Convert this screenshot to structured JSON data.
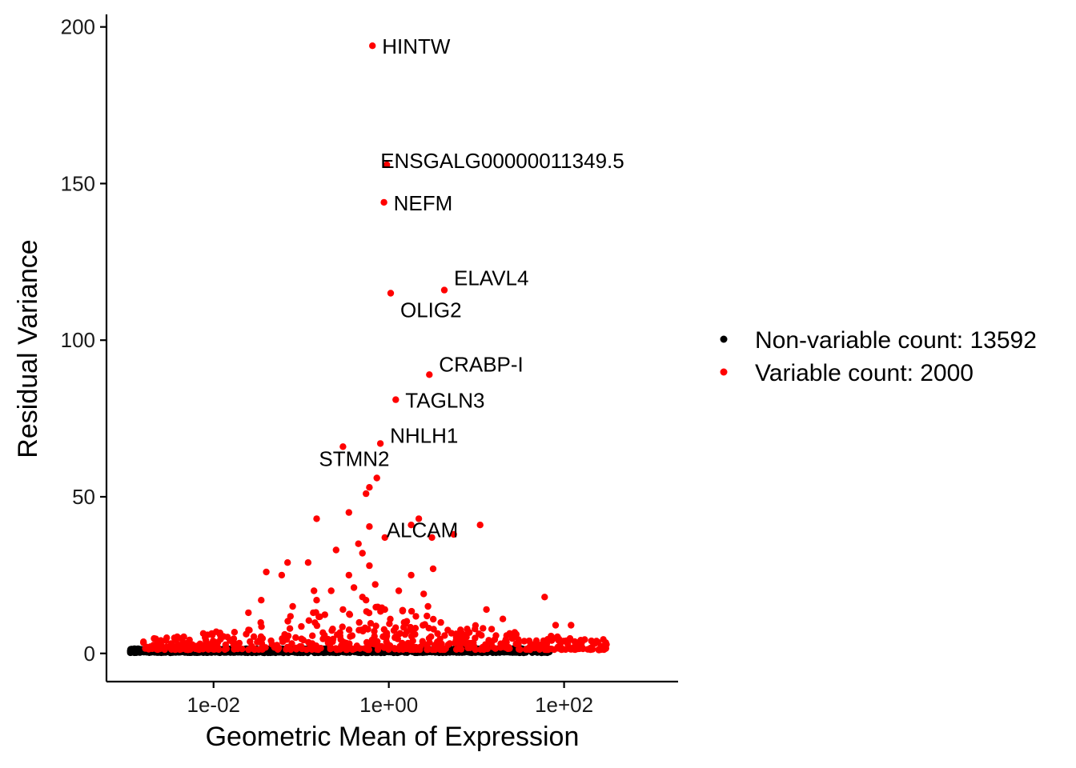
{
  "chart_data": {
    "type": "scatter",
    "xlabel": "Geometric Mean of Expression",
    "ylabel": "Residual Variance",
    "x_scale": "log10",
    "xlim": [
      0.0006,
      2000
    ],
    "ylim": [
      -9,
      204
    ],
    "x_ticks": [
      {
        "value": 0.01,
        "label": "1e-02"
      },
      {
        "value": 1,
        "label": "1e+00"
      },
      {
        "value": 100,
        "label": "1e+02"
      }
    ],
    "y_ticks": [
      {
        "value": 0,
        "label": "0"
      },
      {
        "value": 50,
        "label": "50"
      },
      {
        "value": 100,
        "label": "100"
      },
      {
        "value": 150,
        "label": "150"
      },
      {
        "value": 200,
        "label": "200"
      }
    ],
    "grid": false,
    "legend": {
      "position": "right",
      "entries": [
        {
          "label": "Non-variable count: 13592",
          "color": "#000000"
        },
        {
          "label": "Variable count: 2000",
          "color": "#ff0000"
        }
      ]
    },
    "series": [
      {
        "name": "Non-variable count: 13592",
        "color": "#000000",
        "description": "dense band of points with residual variance near 0-1.5 across mean expression 0.001 to 80"
      },
      {
        "name": "Variable count: 2000",
        "color": "#ff0000",
        "labeled_points": [
          {
            "gene": "HINTW",
            "x": 0.65,
            "y": 194
          },
          {
            "gene": "ENSGALG00000011349.5",
            "x": 0.95,
            "y": 156
          },
          {
            "gene": "NEFM",
            "x": 0.88,
            "y": 144
          },
          {
            "gene": "ELAVL4",
            "x": 4.3,
            "y": 116
          },
          {
            "gene": "OLIG2",
            "x": 1.05,
            "y": 115
          },
          {
            "gene": "CRABP-I",
            "x": 2.9,
            "y": 89
          },
          {
            "gene": "TAGLN3",
            "x": 1.2,
            "y": 81
          },
          {
            "gene": "NHLH1",
            "x": 0.8,
            "y": 67
          },
          {
            "gene": "STMN2",
            "x": 0.3,
            "y": 66
          },
          {
            "gene": "ALCAM",
            "x": 0.73,
            "y": 56
          }
        ],
        "points": [
          {
            "x": 0.6,
            "y": 53
          },
          {
            "x": 0.55,
            "y": 51
          },
          {
            "x": 0.35,
            "y": 45
          },
          {
            "x": 0.15,
            "y": 43
          },
          {
            "x": 11,
            "y": 41
          },
          {
            "x": 2.2,
            "y": 43
          },
          {
            "x": 1.8,
            "y": 41
          },
          {
            "x": 5.5,
            "y": 38
          },
          {
            "x": 0.9,
            "y": 37
          },
          {
            "x": 3.1,
            "y": 37
          },
          {
            "x": 0.6,
            "y": 40.5
          },
          {
            "x": 0.25,
            "y": 33
          },
          {
            "x": 0.07,
            "y": 29
          },
          {
            "x": 0.12,
            "y": 29
          },
          {
            "x": 0.45,
            "y": 35
          },
          {
            "x": 0.5,
            "y": 32
          },
          {
            "x": 3.2,
            "y": 27
          },
          {
            "x": 0.04,
            "y": 26
          },
          {
            "x": 0.06,
            "y": 25
          },
          {
            "x": 0.35,
            "y": 25
          },
          {
            "x": 1.8,
            "y": 25
          },
          {
            "x": 0.6,
            "y": 28
          },
          {
            "x": 0.22,
            "y": 20
          },
          {
            "x": 0.14,
            "y": 20
          },
          {
            "x": 60,
            "y": 18
          },
          {
            "x": 0.7,
            "y": 22
          },
          {
            "x": 1.3,
            "y": 20
          },
          {
            "x": 2.5,
            "y": 19
          },
          {
            "x": 0.4,
            "y": 21
          },
          {
            "x": 0.035,
            "y": 17
          },
          {
            "x": 0.5,
            "y": 18
          },
          {
            "x": 0.15,
            "y": 17
          },
          {
            "x": 0.55,
            "y": 17
          },
          {
            "x": 2.8,
            "y": 15
          },
          {
            "x": 13,
            "y": 14
          },
          {
            "x": 0.9,
            "y": 14
          },
          {
            "x": 0.025,
            "y": 13
          },
          {
            "x": 0.08,
            "y": 15
          },
          {
            "x": 0.3,
            "y": 14
          },
          {
            "x": 120,
            "y": 9
          },
          {
            "x": 80,
            "y": 9
          },
          {
            "x": 20,
            "y": 11
          }
        ]
      }
    ]
  }
}
